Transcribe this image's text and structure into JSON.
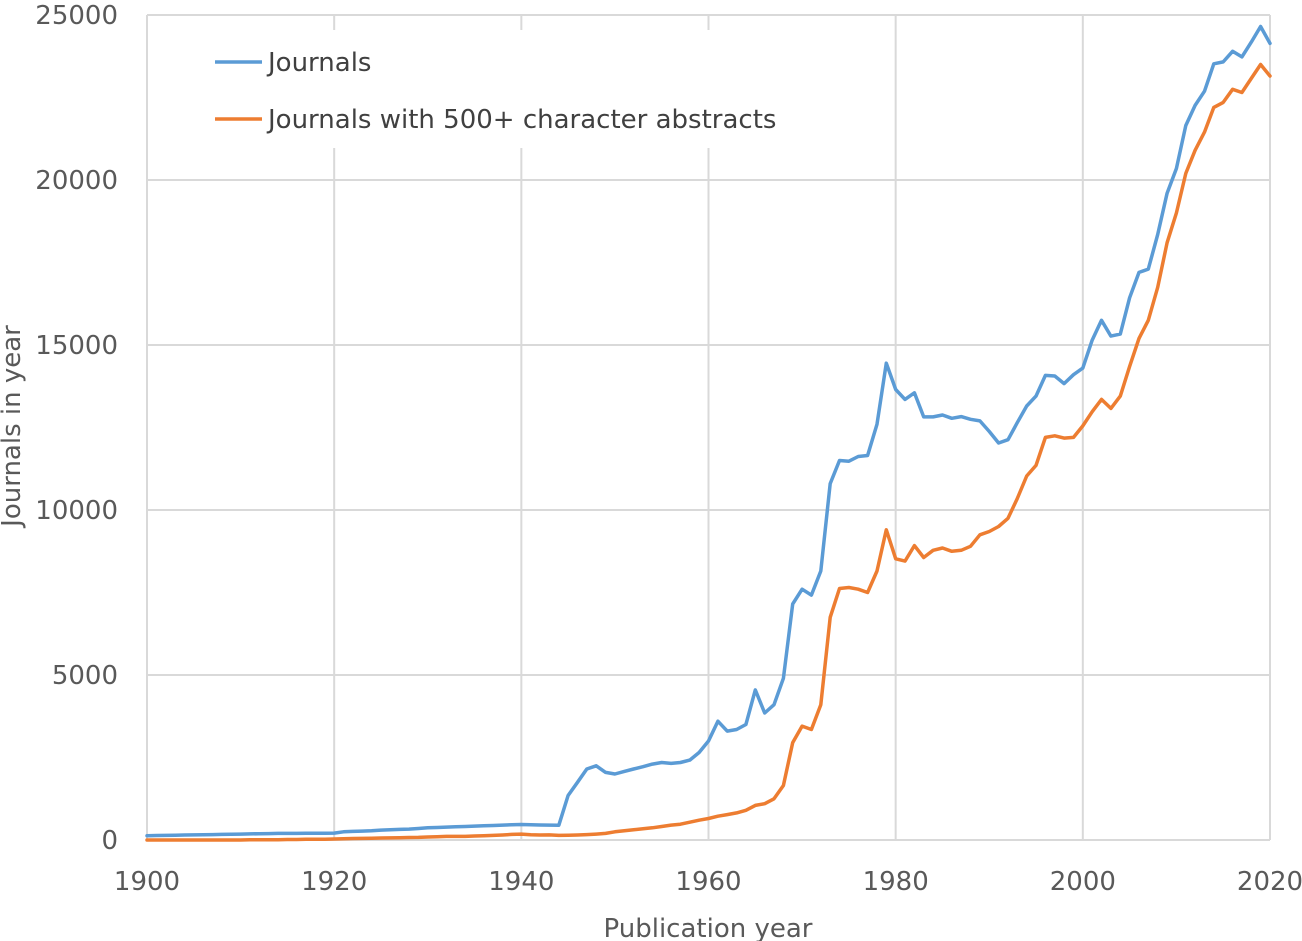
{
  "chart_data": {
    "type": "line",
    "title": "",
    "xlabel": "Publication year",
    "ylabel": "Journals in year",
    "xlim": [
      1900,
      2020
    ],
    "ylim": [
      0,
      25000
    ],
    "xticks": [
      "1900",
      "1920",
      "1940",
      "1960",
      "1980",
      "2000",
      "2020"
    ],
    "yticks": [
      "0",
      "5000",
      "10000",
      "15000",
      "20000",
      "25000"
    ],
    "grid": true,
    "legend_position": "top-left",
    "x": [
      1900,
      1901,
      1902,
      1903,
      1904,
      1905,
      1906,
      1907,
      1908,
      1909,
      1910,
      1911,
      1912,
      1913,
      1914,
      1915,
      1916,
      1917,
      1918,
      1919,
      1920,
      1921,
      1922,
      1923,
      1924,
      1925,
      1926,
      1927,
      1928,
      1929,
      1930,
      1931,
      1932,
      1933,
      1934,
      1935,
      1936,
      1937,
      1938,
      1939,
      1940,
      1941,
      1942,
      1943,
      1944,
      1945,
      1946,
      1947,
      1948,
      1949,
      1950,
      1951,
      1952,
      1953,
      1954,
      1955,
      1956,
      1957,
      1958,
      1959,
      1960,
      1961,
      1962,
      1963,
      1964,
      1965,
      1966,
      1967,
      1968,
      1969,
      1970,
      1971,
      1972,
      1973,
      1974,
      1975,
      1976,
      1977,
      1978,
      1979,
      1980,
      1981,
      1982,
      1983,
      1984,
      1985,
      1986,
      1987,
      1988,
      1989,
      1990,
      1991,
      1992,
      1993,
      1994,
      1995,
      1996,
      1997,
      1998,
      1999,
      2000,
      2001,
      2002,
      2003,
      2004,
      2005,
      2006,
      2007,
      2008,
      2009,
      2010,
      2011,
      2012,
      2013,
      2014,
      2015,
      2016,
      2017,
      2018,
      2019,
      2020
    ],
    "series": [
      {
        "name": "Journals",
        "color": "#5b9bd5",
        "values": [
          130,
          135,
          140,
          145,
          150,
          155,
          160,
          165,
          170,
          175,
          180,
          185,
          190,
          195,
          200,
          200,
          200,
          205,
          205,
          205,
          210,
          250,
          260,
          270,
          280,
          300,
          310,
          320,
          330,
          350,
          370,
          380,
          390,
          400,
          410,
          420,
          430,
          440,
          450,
          460,
          470,
          460,
          455,
          450,
          445,
          1350,
          1750,
          2150,
          2250,
          2050,
          2000,
          2080,
          2150,
          2220,
          2300,
          2350,
          2320,
          2350,
          2420,
          2650,
          3000,
          3600,
          3300,
          3350,
          3500,
          4550,
          3850,
          4100,
          4900,
          7150,
          7600,
          7420,
          8150,
          10800,
          11500,
          11480,
          11620,
          11650,
          12600,
          14450,
          13650,
          13350,
          13550,
          12820,
          12820,
          12880,
          12780,
          12830,
          12750,
          12700,
          12380,
          12030,
          12130,
          12650,
          13150,
          13450,
          14080,
          14060,
          13830,
          14100,
          14300,
          15150,
          15750,
          15270,
          15330,
          16430,
          17200,
          17300,
          18350,
          19600,
          20350,
          21650,
          22260,
          22690,
          23520,
          23580,
          23900,
          23730,
          24180,
          24650,
          24140
        ]
      },
      {
        "name": "Journals with 500+ character abstracts",
        "color": "#ed7d31",
        "values": [
          0,
          0,
          0,
          0,
          0,
          0,
          0,
          0,
          0,
          0,
          0,
          10,
          10,
          10,
          10,
          15,
          15,
          20,
          20,
          20,
          30,
          40,
          45,
          50,
          55,
          60,
          65,
          70,
          75,
          80,
          90,
          100,
          110,
          110,
          110,
          120,
          130,
          140,
          150,
          170,
          180,
          160,
          150,
          155,
          140,
          145,
          150,
          165,
          180,
          200,
          250,
          280,
          310,
          340,
          370,
          410,
          450,
          480,
          540,
          600,
          650,
          720,
          770,
          820,
          900,
          1050,
          1100,
          1250,
          1650,
          2950,
          3450,
          3350,
          4100,
          6750,
          7620,
          7650,
          7600,
          7500,
          8150,
          9400,
          8520,
          8450,
          8920,
          8560,
          8780,
          8850,
          8750,
          8780,
          8900,
          9250,
          9350,
          9500,
          9750,
          10350,
          11030,
          11350,
          12200,
          12250,
          12180,
          12200,
          12550,
          12980,
          13350,
          13080,
          13450,
          14350,
          15200,
          15750,
          16750,
          18100,
          19000,
          20200,
          20900,
          21450,
          22200,
          22350,
          22750,
          22650,
          23080,
          23500,
          23150
        ]
      }
    ]
  }
}
